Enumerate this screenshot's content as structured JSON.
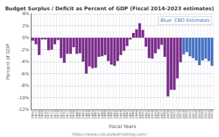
{
  "chart_data": {
    "type": "bar",
    "title": "Budget Surplus / Deficit as Percent of GDP (Fiscal 2014-2023 estimates)",
    "xlabel": "Fiscal Years",
    "ylabel": "Percent of GDP",
    "annotations": [
      {
        "text": "Blue: CBO Estimates",
        "color": "#4472C4"
      },
      {
        "text": "https://www.calculatedriskblog.com/"
      }
    ],
    "categories": [
      "1966",
      "1967",
      "1968",
      "1969",
      "1970",
      "1971",
      "1972",
      "1973",
      "1974",
      "1975",
      "1976",
      "1977",
      "1978",
      "1979",
      "1980",
      "1981",
      "1982",
      "1983",
      "1984",
      "1985",
      "1986",
      "1987",
      "1988",
      "1989",
      "1990",
      "1991",
      "1992",
      "1993",
      "1994",
      "1995",
      "1996",
      "1997",
      "1998",
      "1999",
      "2000",
      "2001",
      "2002",
      "2003",
      "2004",
      "2005",
      "2006",
      "2007",
      "2008",
      "2009",
      "2010",
      "2011",
      "2012",
      "2013",
      "2014",
      "2015",
      "2016",
      "2017",
      "2018",
      "2019",
      "2020",
      "2021",
      "2022",
      "2023"
    ],
    "values": [
      -0.5,
      -1.1,
      -2.9,
      -0.3,
      -0.3,
      -2.1,
      -2.0,
      -1.1,
      -0.4,
      -3.4,
      -4.2,
      -2.7,
      -2.7,
      -1.6,
      -2.7,
      -2.6,
      -4.0,
      -6.0,
      -4.8,
      -5.1,
      -5.0,
      -3.2,
      -3.1,
      -2.9,
      -3.9,
      -4.5,
      -4.7,
      -3.9,
      -2.9,
      -2.2,
      -1.4,
      -0.3,
      0.8,
      1.4,
      2.4,
      1.3,
      -1.5,
      -3.4,
      -3.5,
      -2.6,
      -1.9,
      -1.2,
      -3.2,
      -9.8,
      -8.7,
      -8.7,
      -6.8,
      -4.1,
      -2.8,
      -2.4,
      -3.1,
      -3.4,
      -3.8,
      -4.6,
      -3.8,
      -3.5,
      -3.9,
      -4.7
    ],
    "colors": [
      "#7B2D8B",
      "#7B2D8B",
      "#7B2D8B",
      "#7B2D8B",
      "#7B2D8B",
      "#7B2D8B",
      "#7B2D8B",
      "#7B2D8B",
      "#7B2D8B",
      "#7B2D8B",
      "#7B2D8B",
      "#7B2D8B",
      "#7B2D8B",
      "#7B2D8B",
      "#7B2D8B",
      "#7B2D8B",
      "#7B2D8B",
      "#7B2D8B",
      "#7B2D8B",
      "#7B2D8B",
      "#7B2D8B",
      "#7B2D8B",
      "#7B2D8B",
      "#7B2D8B",
      "#7B2D8B",
      "#7B2D8B",
      "#7B2D8B",
      "#7B2D8B",
      "#7B2D8B",
      "#7B2D8B",
      "#7B2D8B",
      "#7B2D8B",
      "#7B2D8B",
      "#7B2D8B",
      "#7B2D8B",
      "#7B2D8B",
      "#7B2D8B",
      "#7B2D8B",
      "#7B2D8B",
      "#7B2D8B",
      "#7B2D8B",
      "#7B2D8B",
      "#7B2D8B",
      "#7B2D8B",
      "#7B2D8B",
      "#7B2D8B",
      "#7B2D8B",
      "#7B2D8B",
      "#4472C4",
      "#4472C4",
      "#4472C4",
      "#4472C4",
      "#4472C4",
      "#4472C4",
      "#4472C4",
      "#4472C4",
      "#4472C4",
      "#4472C4"
    ],
    "ylim": [
      -12,
      4
    ],
    "yticks": [
      {
        "value": 4,
        "label": "4%"
      },
      {
        "value": 2,
        "label": "2%"
      },
      {
        "value": 0,
        "label": "0%"
      },
      {
        "value": -2,
        "label": "-2%"
      },
      {
        "value": -4,
        "label": "-4%"
      },
      {
        "value": -6,
        "label": "-6%"
      },
      {
        "value": -8,
        "label": "-8%"
      },
      {
        "value": -10,
        "label": "-10%"
      },
      {
        "value": -12,
        "label": "-12%"
      }
    ],
    "grid": true
  }
}
